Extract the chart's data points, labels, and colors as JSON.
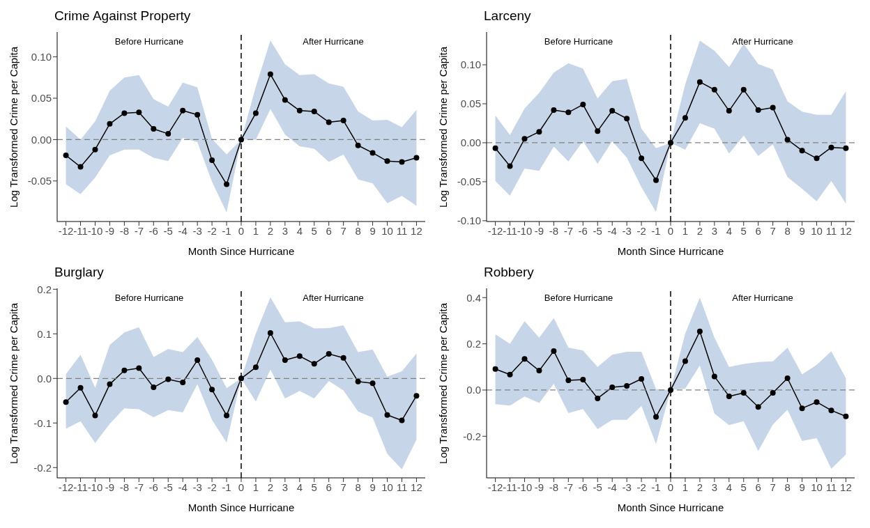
{
  "chart_data": [
    {
      "type": "line",
      "title": "Crime Against Property",
      "xlabel": "Month Since Hurricane",
      "ylabel": "Log Transformed Crime per Capita",
      "annotations": [
        "Before Hurricane",
        "After Hurricane"
      ],
      "x": [
        -12,
        -11,
        -10,
        -9,
        -8,
        -7,
        -6,
        -5,
        -4,
        -3,
        -2,
        -1,
        0,
        1,
        2,
        3,
        4,
        5,
        6,
        7,
        8,
        9,
        10,
        11,
        12
      ],
      "series": [
        {
          "color": "#000000",
          "values": [
            -0.019,
            -0.033,
            -0.012,
            0.019,
            0.032,
            0.033,
            0.013,
            0.007,
            0.035,
            0.03,
            -0.025,
            -0.054,
            0,
            0.032,
            0.079,
            0.048,
            0.035,
            0.034,
            0.021,
            0.023,
            -0.007,
            -0.016,
            -0.026,
            -0.027,
            -0.022
          ],
          "lower": [
            -0.054,
            -0.066,
            -0.046,
            -0.019,
            -0.012,
            -0.012,
            -0.022,
            -0.026,
            0.002,
            -0.003,
            -0.051,
            -0.088,
            0,
            0,
            0.037,
            0.006,
            -0.008,
            -0.011,
            -0.027,
            -0.018,
            -0.048,
            -0.053,
            -0.077,
            -0.068,
            -0.08
          ],
          "upper": [
            0.016,
            0,
            0.022,
            0.059,
            0.075,
            0.078,
            0.049,
            0.04,
            0.069,
            0.063,
            0.001,
            -0.018,
            0,
            0.064,
            0.12,
            0.091,
            0.078,
            0.079,
            0.068,
            0.064,
            0.034,
            0.023,
            0.024,
            0.015,
            0.036
          ]
        }
      ],
      "xlim": [
        -12.6,
        12.6
      ],
      "xticks": [
        -12,
        -11,
        -10,
        -9,
        -8,
        -7,
        -6,
        -5,
        -4,
        -3,
        -2,
        -1,
        0,
        1,
        2,
        3,
        4,
        5,
        6,
        7,
        8,
        9,
        10,
        11,
        12
      ],
      "ylim": [
        -0.099,
        0.13
      ],
      "yticks": [
        {
          "value": -0.05,
          "label": "-0.05"
        },
        {
          "value": 0,
          "label": "0.00"
        },
        {
          "value": 0.05,
          "label": "0.05"
        },
        {
          "value": 0.1,
          "label": "0.10"
        }
      ],
      "ref_lines": [
        {
          "axis": "y",
          "value": 0,
          "color": "#808080",
          "line_style": "dashed"
        },
        {
          "axis": "x",
          "value": 0,
          "color": "#000000",
          "line_style": "dashed"
        }
      ],
      "grid": false,
      "marker": "circle",
      "line_style": "solid"
    },
    {
      "type": "line",
      "title": "Larceny",
      "xlabel": "Month Since Hurricane",
      "ylabel": "Log Transformed Crime per Capita",
      "annotations": [
        "Before Hurricane",
        "After Hurricane"
      ],
      "x": [
        -12,
        -11,
        -10,
        -9,
        -8,
        -7,
        -6,
        -5,
        -4,
        -3,
        -2,
        -1,
        0,
        1,
        2,
        3,
        4,
        5,
        6,
        7,
        8,
        9,
        10,
        11,
        12
      ],
      "series": [
        {
          "color": "#000000",
          "values": [
            -0.007,
            -0.03,
            0.005,
            0.014,
            0.042,
            0.039,
            0.049,
            0.015,
            0.041,
            0.031,
            -0.02,
            -0.048,
            0,
            0.032,
            0.078,
            0.068,
            0.041,
            0.068,
            0.042,
            0.045,
            0.004,
            -0.01,
            -0.02,
            -0.006,
            -0.007
          ],
          "lower": [
            -0.049,
            -0.068,
            -0.033,
            -0.036,
            -0.005,
            -0.024,
            0.002,
            -0.027,
            0.002,
            -0.019,
            -0.057,
            -0.089,
            0,
            -0.009,
            0.025,
            0.018,
            -0.014,
            0.009,
            -0.017,
            -0.002,
            -0.044,
            -0.059,
            -0.075,
            -0.049,
            -0.078
          ],
          "upper": [
            0.035,
            0.01,
            0.044,
            0.064,
            0.09,
            0.102,
            0.095,
            0.057,
            0.079,
            0.082,
            0.018,
            -0.007,
            0,
            0.075,
            0.131,
            0.118,
            0.097,
            0.127,
            0.101,
            0.094,
            0.053,
            0.04,
            0.036,
            0.036,
            0.066
          ]
        }
      ],
      "xlim": [
        -12.6,
        12.6
      ],
      "xticks": [
        -12,
        -11,
        -10,
        -9,
        -8,
        -7,
        -6,
        -5,
        -4,
        -3,
        -2,
        -1,
        0,
        1,
        2,
        3,
        4,
        5,
        6,
        7,
        8,
        9,
        10,
        11,
        12
      ],
      "ylim": [
        -0.101,
        0.142
      ],
      "yticks": [
        {
          "value": -0.1,
          "label": "-0.10"
        },
        {
          "value": -0.05,
          "label": "-0.05"
        },
        {
          "value": 0,
          "label": "0.00"
        },
        {
          "value": 0.05,
          "label": "0.05"
        },
        {
          "value": 0.1,
          "label": "0.10"
        }
      ],
      "ref_lines": [
        {
          "axis": "y",
          "value": 0,
          "color": "#808080",
          "line_style": "dashed"
        },
        {
          "axis": "x",
          "value": 0,
          "color": "#000000",
          "line_style": "dashed"
        }
      ],
      "grid": false,
      "marker": "circle",
      "line_style": "solid"
    },
    {
      "type": "line",
      "title": "Burglary",
      "xlabel": "Month Since Hurricane",
      "ylabel": "Log Transformed Crime per Capita",
      "annotations": [
        "Before Hurricane",
        "After Hurricane"
      ],
      "x": [
        -12,
        -11,
        -10,
        -9,
        -8,
        -7,
        -6,
        -5,
        -4,
        -3,
        -2,
        -1,
        0,
        1,
        2,
        3,
        4,
        5,
        6,
        7,
        8,
        9,
        10,
        11,
        12
      ],
      "series": [
        {
          "color": "#000000",
          "values": [
            -0.053,
            -0.021,
            -0.083,
            -0.013,
            0.018,
            0.023,
            -0.02,
            -0.002,
            -0.009,
            0.041,
            -0.025,
            -0.083,
            0,
            0.025,
            0.102,
            0.041,
            0.05,
            0.033,
            0.055,
            0.046,
            -0.007,
            -0.011,
            -0.082,
            -0.094,
            -0.039
          ],
          "lower": [
            -0.113,
            -0.096,
            -0.145,
            -0.102,
            -0.067,
            -0.069,
            -0.087,
            -0.071,
            -0.076,
            -0.013,
            -0.093,
            -0.144,
            0,
            -0.052,
            0.02,
            -0.045,
            -0.028,
            -0.045,
            -0.006,
            -0.027,
            -0.074,
            -0.088,
            -0.169,
            -0.204,
            -0.137
          ],
          "upper": [
            0.01,
            0.053,
            -0.021,
            0.075,
            0.103,
            0.115,
            0.048,
            0.066,
            0.059,
            0.093,
            0.042,
            -0.022,
            0,
            0.101,
            0.182,
            0.126,
            0.128,
            0.112,
            0.113,
            0.119,
            0.059,
            0.065,
            0.004,
            0.016,
            0.056
          ]
        }
      ],
      "xlim": [
        -12.6,
        12.6
      ],
      "xticks": [
        -12,
        -11,
        -10,
        -9,
        -8,
        -7,
        -6,
        -5,
        -4,
        -3,
        -2,
        -1,
        0,
        1,
        2,
        3,
        4,
        5,
        6,
        7,
        8,
        9,
        10,
        11,
        12
      ],
      "ylim": [
        -0.223,
        0.202
      ],
      "yticks": [
        {
          "value": -0.2,
          "label": "-0.2"
        },
        {
          "value": -0.1,
          "label": "-0.1"
        },
        {
          "value": 0,
          "label": "0.0"
        },
        {
          "value": 0.1,
          "label": "0.1"
        },
        {
          "value": 0.2,
          "label": "0.2"
        }
      ],
      "ref_lines": [
        {
          "axis": "y",
          "value": 0,
          "color": "#808080",
          "line_style": "dashed"
        },
        {
          "axis": "x",
          "value": 0,
          "color": "#000000",
          "line_style": "dashed"
        }
      ],
      "grid": false,
      "marker": "circle",
      "line_style": "solid"
    },
    {
      "type": "line",
      "title": "Robbery",
      "xlabel": "Month Since Hurricane",
      "ylabel": "Log Transformed Crime per Capita",
      "annotations": [
        "Before Hurricane",
        "After Hurricane"
      ],
      "x": [
        -12,
        -11,
        -10,
        -9,
        -8,
        -7,
        -6,
        -5,
        -4,
        -3,
        -2,
        -1,
        0,
        1,
        2,
        3,
        4,
        5,
        6,
        7,
        8,
        9,
        10,
        11,
        12
      ],
      "series": [
        {
          "color": "#000000",
          "values": [
            0.091,
            0.067,
            0.135,
            0.084,
            0.169,
            0.042,
            0.045,
            -0.036,
            0.012,
            0.018,
            0.048,
            -0.116,
            0,
            0.125,
            0.254,
            0.059,
            -0.027,
            -0.012,
            -0.073,
            -0.012,
            0.051,
            -0.079,
            -0.052,
            -0.088,
            -0.114
          ],
          "lower": [
            -0.061,
            -0.067,
            -0.028,
            -0.056,
            0.027,
            -0.1,
            -0.082,
            -0.169,
            -0.129,
            -0.129,
            -0.069,
            -0.234,
            0,
            0.007,
            0.106,
            -0.102,
            -0.152,
            -0.135,
            -0.264,
            -0.149,
            -0.085,
            -0.22,
            -0.208,
            -0.341,
            -0.279
          ],
          "upper": [
            0.241,
            0.2,
            0.298,
            0.227,
            0.312,
            0.184,
            0.171,
            0.1,
            0.153,
            0.166,
            0.166,
            0.004,
            0,
            0.245,
            0.4,
            0.227,
            0.1,
            0.113,
            0.121,
            0.124,
            0.184,
            0.068,
            0.109,
            0.168,
            0.051
          ]
        }
      ],
      "xlim": [
        -12.6,
        12.6
      ],
      "xticks": [
        -12,
        -11,
        -10,
        -9,
        -8,
        -7,
        -6,
        -5,
        -4,
        -3,
        -2,
        -1,
        0,
        1,
        2,
        3,
        4,
        5,
        6,
        7,
        8,
        9,
        10,
        11,
        12
      ],
      "ylim": [
        -0.38,
        0.44
      ],
      "yticks": [
        {
          "value": -0.2,
          "label": "-0.2"
        },
        {
          "value": 0,
          "label": "0.0"
        },
        {
          "value": 0.2,
          "label": "0.2"
        },
        {
          "value": 0.4,
          "label": "0.4"
        }
      ],
      "ref_lines": [
        {
          "axis": "y",
          "value": 0,
          "color": "#808080",
          "line_style": "dashed"
        },
        {
          "axis": "x",
          "value": 0,
          "color": "#000000",
          "line_style": "dashed"
        }
      ],
      "grid": false,
      "marker": "circle",
      "line_style": "solid"
    }
  ]
}
